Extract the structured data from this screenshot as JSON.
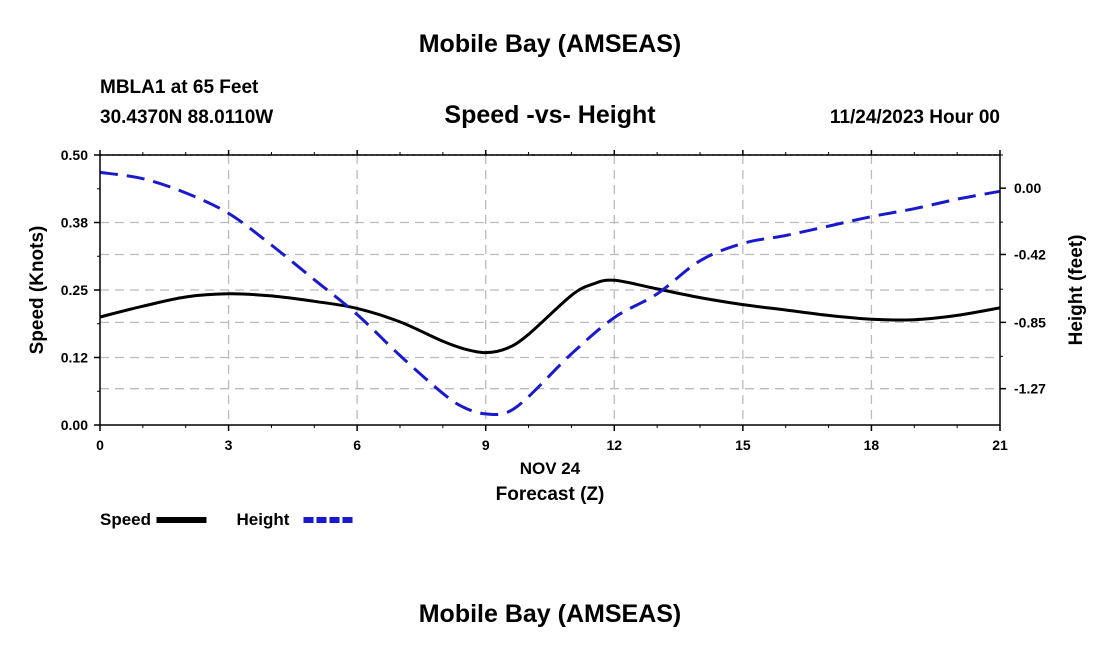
{
  "header": {
    "title": "Mobile Bay (AMSEAS)",
    "station": "MBLA1 at 65 Feet",
    "coords": "30.4370N  88.0110W",
    "subtitle": "Speed -vs- Height",
    "datetime": "11/24/2023 Hour 00"
  },
  "footer": {
    "title": "Mobile Bay (AMSEAS)"
  },
  "chart_data": {
    "type": "line",
    "title": "Speed -vs- Height",
    "xlabel": "Forecast (Z)",
    "xdate_label": "NOV 24",
    "ylabel": "Speed (Knots)",
    "y2label": "Height (feet)",
    "xlim": [
      0,
      21
    ],
    "ylim": [
      0,
      0.5
    ],
    "y2lim": [
      -1.5,
      0.21
    ],
    "x_ticks": [
      0,
      3,
      6,
      9,
      12,
      15,
      18,
      21
    ],
    "x_tick_labels": [
      "0",
      "3",
      "6",
      "9",
      "12",
      "15",
      "18",
      "21"
    ],
    "y_ticks": [
      0,
      0.125,
      0.25,
      0.375,
      0.5
    ],
    "y_tick_labels": [
      "0.00",
      "0.12",
      "0.25",
      "0.38",
      "0.50"
    ],
    "y2_ticks": [
      0,
      -0.42,
      -0.85,
      -1.27
    ],
    "y2_tick_labels": [
      "0.00",
      "-0.42",
      "-0.85",
      "-1.27"
    ],
    "grid": true,
    "series": [
      {
        "name": "Speed",
        "axis": "left",
        "color": "#000000",
        "style": "solid",
        "x": [
          0,
          1,
          2,
          3,
          4,
          5,
          6,
          7,
          8,
          8.5,
          9,
          9.5,
          10,
          11,
          11.5,
          12,
          13,
          14,
          15,
          16,
          17,
          18,
          19,
          20,
          21
        ],
        "y": [
          0.2,
          0.22,
          0.237,
          0.243,
          0.239,
          0.229,
          0.216,
          0.191,
          0.155,
          0.141,
          0.134,
          0.142,
          0.168,
          0.24,
          0.261,
          0.268,
          0.252,
          0.236,
          0.223,
          0.213,
          0.203,
          0.196,
          0.195,
          0.203,
          0.217
        ]
      },
      {
        "name": "Height",
        "axis": "right",
        "color": "#1a1acc",
        "style": "dashed",
        "x": [
          0,
          1,
          2,
          3,
          4,
          5,
          6,
          7,
          8,
          8.5,
          9,
          9.5,
          10,
          11,
          12,
          13,
          14,
          15,
          16,
          17,
          18,
          19,
          20,
          21
        ],
        "y": [
          0.1,
          0.06,
          -0.03,
          -0.16,
          -0.36,
          -0.58,
          -0.8,
          -1.06,
          -1.3,
          -1.39,
          -1.43,
          -1.42,
          -1.32,
          -1.05,
          -0.82,
          -0.67,
          -0.46,
          -0.35,
          -0.3,
          -0.24,
          -0.18,
          -0.13,
          -0.07,
          -0.02
        ]
      }
    ],
    "legend": [
      {
        "label": "Speed",
        "color": "#000000",
        "style": "solid"
      },
      {
        "label": "Height",
        "color": "#1a1acc",
        "style": "dashed"
      }
    ],
    "legend_placement": "bottom-left"
  }
}
